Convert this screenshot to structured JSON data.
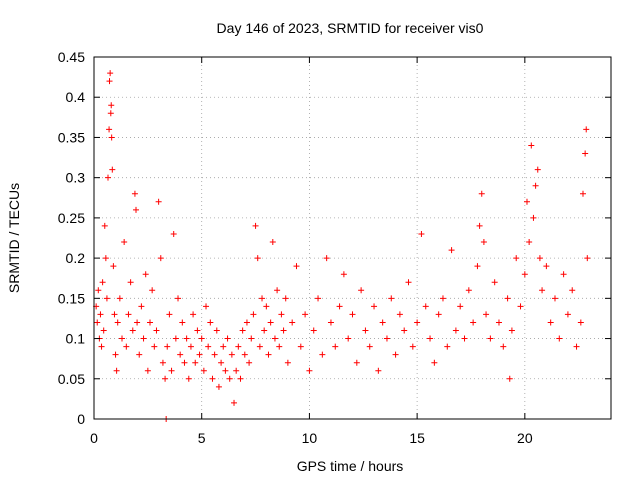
{
  "chart_data": {
    "type": "scatter",
    "title": "Day 146 of 2023, SRMTID for receiver vis0",
    "xlabel": "GPS time / hours",
    "ylabel": "SRMTID / TECUs",
    "xlim": [
      0,
      24
    ],
    "ylim": [
      0,
      0.45
    ],
    "x_ticks": [
      0,
      5,
      10,
      15,
      20
    ],
    "y_ticks": [
      0,
      0.05,
      0.1,
      0.15,
      0.2,
      0.25,
      0.3,
      0.35,
      0.4,
      0.45
    ],
    "x_tick_labels": [
      "0",
      "5",
      "10",
      "15",
      "20"
    ],
    "y_tick_labels": [
      "0",
      "0.05",
      "0.1",
      "0.15",
      "0.2",
      "0.25",
      "0.3",
      "0.35",
      "0.4",
      "0.45"
    ],
    "grid": true,
    "marker": "+",
    "color": "#ff0000",
    "series": [
      {
        "name": "SRMTID",
        "points": [
          [
            0.1,
            0.14
          ],
          [
            0.15,
            0.12
          ],
          [
            0.2,
            0.16
          ],
          [
            0.25,
            0.1
          ],
          [
            0.3,
            0.13
          ],
          [
            0.35,
            0.09
          ],
          [
            0.4,
            0.17
          ],
          [
            0.45,
            0.11
          ],
          [
            0.5,
            0.24
          ],
          [
            0.55,
            0.2
          ],
          [
            0.6,
            0.15
          ],
          [
            0.65,
            0.3
          ],
          [
            0.7,
            0.36
          ],
          [
            0.72,
            0.42
          ],
          [
            0.75,
            0.43
          ],
          [
            0.78,
            0.38
          ],
          [
            0.8,
            0.39
          ],
          [
            0.82,
            0.35
          ],
          [
            0.85,
            0.31
          ],
          [
            0.9,
            0.19
          ],
          [
            0.95,
            0.13
          ],
          [
            1.0,
            0.08
          ],
          [
            1.05,
            0.06
          ],
          [
            1.1,
            0.12
          ],
          [
            1.2,
            0.15
          ],
          [
            1.3,
            0.1
          ],
          [
            1.4,
            0.22
          ],
          [
            1.5,
            0.09
          ],
          [
            1.6,
            0.13
          ],
          [
            1.7,
            0.17
          ],
          [
            1.8,
            0.11
          ],
          [
            1.9,
            0.28
          ],
          [
            1.95,
            0.26
          ],
          [
            2.0,
            0.12
          ],
          [
            2.1,
            0.08
          ],
          [
            2.2,
            0.14
          ],
          [
            2.3,
            0.1
          ],
          [
            2.4,
            0.18
          ],
          [
            2.5,
            0.06
          ],
          [
            2.6,
            0.12
          ],
          [
            2.7,
            0.16
          ],
          [
            2.8,
            0.09
          ],
          [
            2.9,
            0.11
          ],
          [
            3.0,
            0.27
          ],
          [
            3.1,
            0.2
          ],
          [
            3.2,
            0.07
          ],
          [
            3.3,
            0.05
          ],
          [
            3.35,
            0.0
          ],
          [
            3.4,
            0.09
          ],
          [
            3.5,
            0.13
          ],
          [
            3.6,
            0.06
          ],
          [
            3.7,
            0.23
          ],
          [
            3.8,
            0.1
          ],
          [
            3.9,
            0.15
          ],
          [
            4.0,
            0.08
          ],
          [
            4.1,
            0.12
          ],
          [
            4.2,
            0.07
          ],
          [
            4.3,
            0.1
          ],
          [
            4.4,
            0.05
          ],
          [
            4.5,
            0.09
          ],
          [
            4.6,
            0.13
          ],
          [
            4.7,
            0.07
          ],
          [
            4.8,
            0.11
          ],
          [
            4.9,
            0.08
          ],
          [
            5.0,
            0.1
          ],
          [
            5.1,
            0.06
          ],
          [
            5.2,
            0.14
          ],
          [
            5.3,
            0.09
          ],
          [
            5.4,
            0.12
          ],
          [
            5.5,
            0.05
          ],
          [
            5.6,
            0.08
          ],
          [
            5.7,
            0.11
          ],
          [
            5.8,
            0.04
          ],
          [
            5.9,
            0.07
          ],
          [
            6.0,
            0.09
          ],
          [
            6.1,
            0.06
          ],
          [
            6.2,
            0.1
          ],
          [
            6.3,
            0.05
          ],
          [
            6.4,
            0.08
          ],
          [
            6.5,
            0.02
          ],
          [
            6.6,
            0.06
          ],
          [
            6.7,
            0.09
          ],
          [
            6.8,
            0.05
          ],
          [
            6.9,
            0.11
          ],
          [
            7.0,
            0.08
          ],
          [
            7.1,
            0.12
          ],
          [
            7.2,
            0.07
          ],
          [
            7.3,
            0.1
          ],
          [
            7.4,
            0.13
          ],
          [
            7.5,
            0.24
          ],
          [
            7.6,
            0.2
          ],
          [
            7.7,
            0.09
          ],
          [
            7.8,
            0.15
          ],
          [
            7.9,
            0.11
          ],
          [
            8.0,
            0.14
          ],
          [
            8.1,
            0.08
          ],
          [
            8.2,
            0.12
          ],
          [
            8.3,
            0.22
          ],
          [
            8.4,
            0.1
          ],
          [
            8.5,
            0.16
          ],
          [
            8.6,
            0.09
          ],
          [
            8.7,
            0.13
          ],
          [
            8.8,
            0.11
          ],
          [
            8.9,
            0.15
          ],
          [
            9.0,
            0.07
          ],
          [
            9.2,
            0.12
          ],
          [
            9.4,
            0.19
          ],
          [
            9.6,
            0.09
          ],
          [
            9.8,
            0.13
          ],
          [
            10.0,
            0.06
          ],
          [
            10.2,
            0.11
          ],
          [
            10.4,
            0.15
          ],
          [
            10.6,
            0.08
          ],
          [
            10.8,
            0.2
          ],
          [
            11.0,
            0.12
          ],
          [
            11.2,
            0.09
          ],
          [
            11.4,
            0.14
          ],
          [
            11.6,
            0.18
          ],
          [
            11.8,
            0.1
          ],
          [
            12.0,
            0.13
          ],
          [
            12.2,
            0.07
          ],
          [
            12.4,
            0.16
          ],
          [
            12.6,
            0.11
          ],
          [
            12.8,
            0.09
          ],
          [
            13.0,
            0.14
          ],
          [
            13.2,
            0.06
          ],
          [
            13.4,
            0.12
          ],
          [
            13.6,
            0.1
          ],
          [
            13.8,
            0.15
          ],
          [
            14.0,
            0.08
          ],
          [
            14.2,
            0.13
          ],
          [
            14.4,
            0.11
          ],
          [
            14.6,
            0.17
          ],
          [
            14.8,
            0.09
          ],
          [
            15.0,
            0.12
          ],
          [
            15.2,
            0.23
          ],
          [
            15.4,
            0.14
          ],
          [
            15.6,
            0.1
          ],
          [
            15.8,
            0.07
          ],
          [
            16.0,
            0.13
          ],
          [
            16.2,
            0.15
          ],
          [
            16.4,
            0.09
          ],
          [
            16.6,
            0.21
          ],
          [
            16.8,
            0.11
          ],
          [
            17.0,
            0.14
          ],
          [
            17.2,
            0.1
          ],
          [
            17.4,
            0.16
          ],
          [
            17.6,
            0.12
          ],
          [
            17.8,
            0.19
          ],
          [
            17.9,
            0.24
          ],
          [
            18.0,
            0.28
          ],
          [
            18.1,
            0.22
          ],
          [
            18.2,
            0.13
          ],
          [
            18.4,
            0.1
          ],
          [
            18.6,
            0.17
          ],
          [
            18.8,
            0.12
          ],
          [
            19.0,
            0.09
          ],
          [
            19.2,
            0.15
          ],
          [
            19.3,
            0.05
          ],
          [
            19.4,
            0.11
          ],
          [
            19.6,
            0.2
          ],
          [
            19.8,
            0.14
          ],
          [
            20.0,
            0.18
          ],
          [
            20.1,
            0.27
          ],
          [
            20.2,
            0.22
          ],
          [
            20.3,
            0.34
          ],
          [
            20.4,
            0.25
          ],
          [
            20.5,
            0.29
          ],
          [
            20.6,
            0.31
          ],
          [
            20.7,
            0.2
          ],
          [
            20.8,
            0.16
          ],
          [
            21.0,
            0.19
          ],
          [
            21.2,
            0.12
          ],
          [
            21.4,
            0.15
          ],
          [
            21.6,
            0.1
          ],
          [
            21.8,
            0.18
          ],
          [
            22.0,
            0.13
          ],
          [
            22.2,
            0.16
          ],
          [
            22.4,
            0.09
          ],
          [
            22.6,
            0.12
          ],
          [
            22.7,
            0.28
          ],
          [
            22.8,
            0.33
          ],
          [
            22.85,
            0.36
          ],
          [
            22.9,
            0.2
          ]
        ]
      }
    ]
  }
}
